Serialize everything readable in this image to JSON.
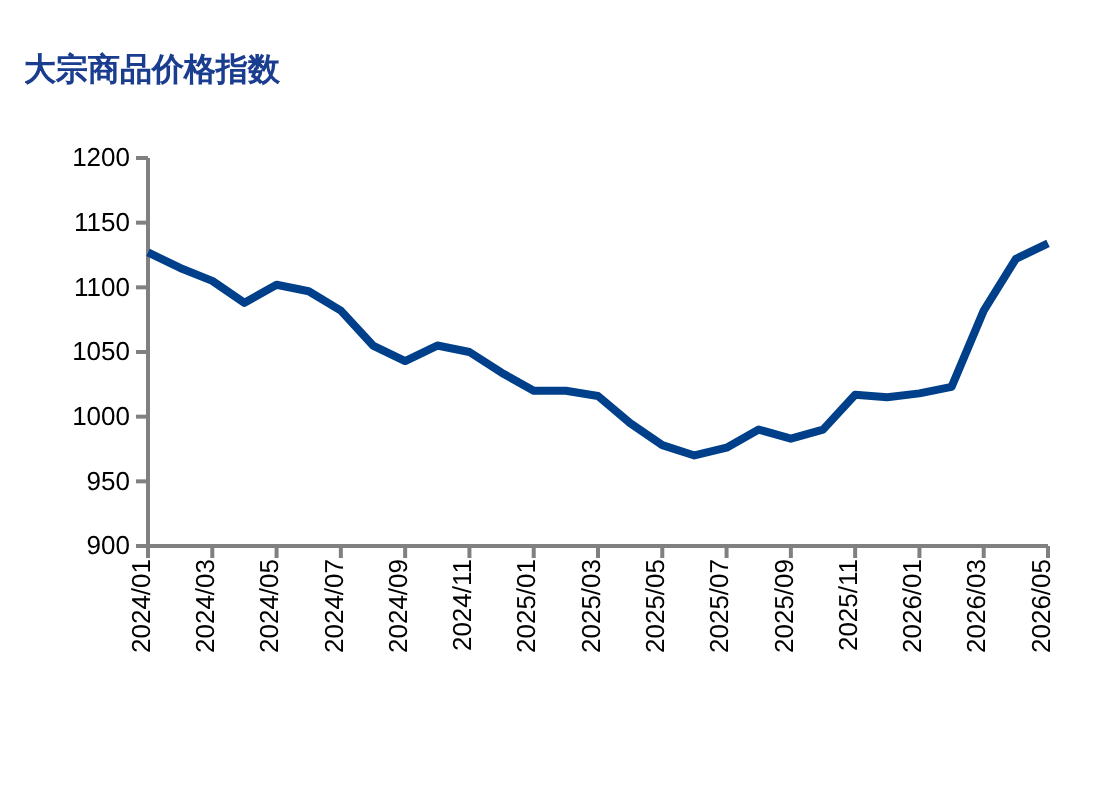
{
  "chart_data": {
    "type": "line",
    "title": "大宗商品价格指数",
    "categories": [
      "2024/01",
      null,
      "2024/03",
      null,
      "2024/05",
      null,
      "2024/07",
      null,
      "2024/09",
      null,
      "2024/11",
      null,
      "2025/01",
      null,
      "2025/03",
      null,
      "2025/05",
      null,
      "2025/07",
      null,
      "2025/09",
      null,
      "2025/11",
      null,
      "2026/01",
      null,
      "2026/03",
      null,
      "2026/05"
    ],
    "series": [
      {
        "color": "#003f8a",
        "values": [
          1127,
          1115,
          1105,
          1088,
          1102,
          1097,
          1082,
          1055,
          1043,
          1055,
          1050,
          1034,
          1020,
          1020,
          1016,
          995,
          978,
          970,
          976,
          990,
          983,
          990,
          1017,
          1015,
          1018,
          1023,
          1082,
          1122,
          1134
        ]
      }
    ],
    "ylim": [
      900,
      1200
    ],
    "yticks": [
      900,
      950,
      1000,
      1050,
      1100,
      1150,
      1200
    ],
    "grid": false,
    "marker": "none",
    "line_style": "solid"
  }
}
